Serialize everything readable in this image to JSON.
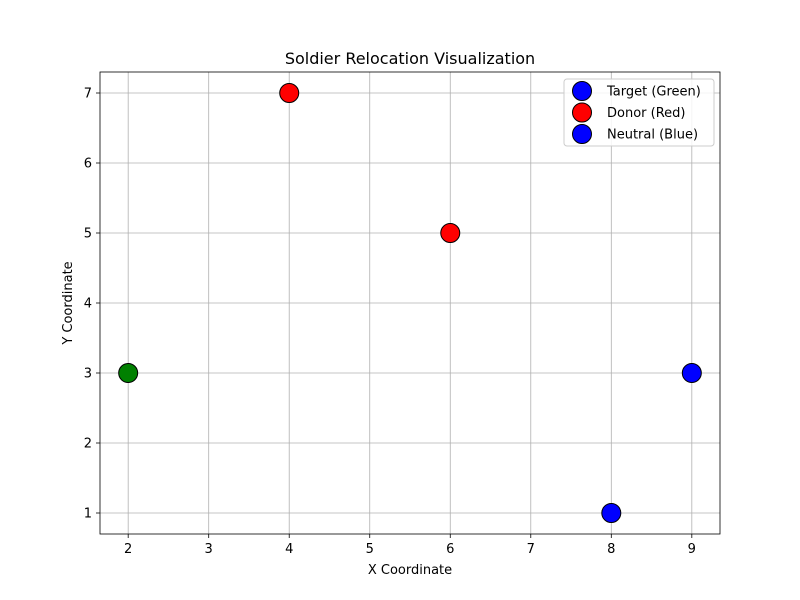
{
  "chart_data": {
    "type": "scatter",
    "title": "Soldier Relocation Visualization",
    "xlabel": "X Coordinate",
    "ylabel": "Y Coordinate",
    "xlim": [
      1.65,
      9.35
    ],
    "ylim": [
      0.7,
      7.3
    ],
    "xticks": [
      2,
      3,
      4,
      5,
      6,
      7,
      8,
      9
    ],
    "yticks": [
      1,
      2,
      3,
      4,
      5,
      6,
      7
    ],
    "grid": true,
    "legend_position": "top-right",
    "series": [
      {
        "name": "Target (Green)",
        "legend_color": "#0000ff",
        "point_color": "#008000",
        "points": [
          {
            "x": 2,
            "y": 3
          }
        ]
      },
      {
        "name": "Donor (Red)",
        "legend_color": "#ff0000",
        "point_color": "#ff0000",
        "points": [
          {
            "x": 4,
            "y": 7
          },
          {
            "x": 6,
            "y": 5
          }
        ]
      },
      {
        "name": "Neutral (Blue)",
        "legend_color": "#0000ff",
        "point_color": "#0000ff",
        "points": [
          {
            "x": 8,
            "y": 1
          },
          {
            "x": 9,
            "y": 3
          }
        ]
      }
    ]
  }
}
